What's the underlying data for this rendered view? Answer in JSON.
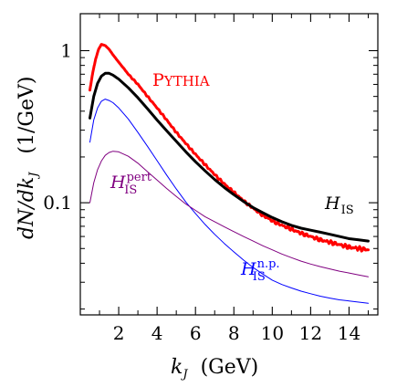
{
  "chart_data": {
    "type": "line",
    "xlabel": {
      "var": "k",
      "var_sub": "J",
      "unit": "(GeV)"
    },
    "ylabel": {
      "text": "dN/dk",
      "text_sub": "J",
      "unit": "(1/GeV)"
    },
    "x_ticks": [
      2,
      4,
      6,
      8,
      10,
      12,
      14
    ],
    "y_ticks": [
      {
        "value": 1,
        "label": "1"
      },
      {
        "value": 0.1,
        "label": "0.1"
      }
    ],
    "xlim": [
      0,
      15.5
    ],
    "ylim": [
      0.0183,
      1.75
    ],
    "y_scale": "log",
    "grid": false,
    "series": [
      {
        "key": "pythia",
        "name": "Pythia",
        "color": "#ff0000",
        "label_parts": {
          "main": "Pythia"
        },
        "x": [
          0.5,
          0.65,
          0.8,
          0.95,
          1.1,
          1.3,
          1.5,
          1.7,
          2.0,
          2.5,
          3.0,
          3.5,
          4.0,
          4.5,
          5.0,
          5.5,
          6.0,
          6.5,
          7.0,
          7.5,
          8.0,
          8.5,
          9.0,
          9.5,
          10.0,
          10.5,
          11.0,
          11.5,
          12.0,
          12.5,
          13.0,
          13.5,
          14.0,
          14.5,
          15.0
        ],
        "y": [
          0.55,
          0.72,
          0.88,
          1.02,
          1.1,
          1.08,
          1.02,
          0.94,
          0.84,
          0.7,
          0.6,
          0.5,
          0.42,
          0.35,
          0.29,
          0.245,
          0.208,
          0.178,
          0.153,
          0.133,
          0.117,
          0.103,
          0.092,
          0.083,
          0.076,
          0.071,
          0.067,
          0.063,
          0.06,
          0.057,
          0.055,
          0.053,
          0.051,
          0.05,
          0.049
        ]
      },
      {
        "key": "h_is",
        "name": "H_IS",
        "color": "#000000",
        "label_parts": {
          "main": "H",
          "sub": "IS",
          "sup": ""
        },
        "x": [
          0.5,
          0.7,
          0.9,
          1.1,
          1.3,
          1.5,
          1.7,
          2.0,
          2.5,
          3.0,
          3.5,
          4.0,
          4.5,
          5.0,
          5.5,
          6.0,
          6.5,
          7.0,
          7.5,
          8.0,
          8.5,
          9.0,
          9.5,
          10.0,
          10.5,
          11.0,
          11.5,
          12.0,
          12.5,
          13.0,
          13.5,
          14.0,
          14.5,
          15.0
        ],
        "y": [
          0.36,
          0.5,
          0.61,
          0.68,
          0.71,
          0.71,
          0.69,
          0.65,
          0.57,
          0.49,
          0.415,
          0.35,
          0.297,
          0.253,
          0.216,
          0.186,
          0.162,
          0.142,
          0.126,
          0.113,
          0.102,
          0.093,
          0.086,
          0.08,
          0.075,
          0.071,
          0.068,
          0.066,
          0.064,
          0.062,
          0.06,
          0.058,
          0.057,
          0.056
        ]
      },
      {
        "key": "h_is_np",
        "name": "H_IS n.p.",
        "color": "#0000ff",
        "label_parts": {
          "main": "H",
          "sub": "IS",
          "sup": "n.p."
        },
        "x": [
          0.5,
          0.7,
          0.9,
          1.1,
          1.3,
          1.5,
          1.7,
          2.0,
          2.5,
          3.0,
          3.5,
          4.0,
          4.5,
          5.0,
          5.5,
          6.0,
          6.5,
          7.0,
          7.5,
          8.0,
          8.5,
          9.0,
          9.5,
          10.0,
          10.5,
          11.0,
          11.5,
          12.0,
          12.5,
          13.0,
          13.5,
          14.0,
          14.5,
          15.0
        ],
        "y": [
          0.25,
          0.35,
          0.42,
          0.465,
          0.48,
          0.47,
          0.455,
          0.42,
          0.355,
          0.29,
          0.235,
          0.189,
          0.152,
          0.123,
          0.101,
          0.085,
          0.072,
          0.062,
          0.054,
          0.0475,
          0.042,
          0.0375,
          0.034,
          0.031,
          0.029,
          0.0275,
          0.0262,
          0.0252,
          0.0243,
          0.0236,
          0.023,
          0.0226,
          0.0222,
          0.0218
        ]
      },
      {
        "key": "h_is_pert",
        "name": "H_IS pert",
        "color": "#800080",
        "label_parts": {
          "main": "H",
          "sub": "IS",
          "sup": "pert"
        },
        "x": [
          0.5,
          0.7,
          0.9,
          1.1,
          1.3,
          1.5,
          1.7,
          2.0,
          2.5,
          3.0,
          3.5,
          4.0,
          4.5,
          5.0,
          5.5,
          6.0,
          6.5,
          7.0,
          7.5,
          8.0,
          8.5,
          9.0,
          9.5,
          10.0,
          10.5,
          11.0,
          11.5,
          12.0,
          12.5,
          13.0,
          13.5,
          14.0,
          14.5,
          15.0
        ],
        "y": [
          0.1,
          0.135,
          0.165,
          0.188,
          0.205,
          0.214,
          0.218,
          0.216,
          0.202,
          0.182,
          0.16,
          0.141,
          0.124,
          0.11,
          0.098,
          0.089,
          0.081,
          0.075,
          0.0695,
          0.0645,
          0.06,
          0.056,
          0.0522,
          0.049,
          0.046,
          0.0435,
          0.0413,
          0.0395,
          0.038,
          0.0367,
          0.0355,
          0.0345,
          0.0335,
          0.0326
        ]
      }
    ]
  }
}
